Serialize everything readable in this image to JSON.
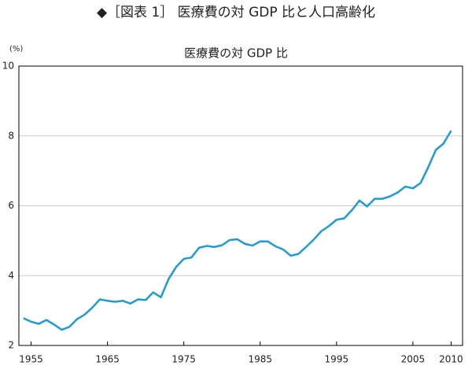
{
  "header": "◆［図表 1］ 医療費の対 GDP 比と人口高齢化",
  "chart_data": {
    "type": "line",
    "title": "医療費の対 GDP 比",
    "y_unit": "(%)",
    "x": [
      1954,
      1955,
      1956,
      1957,
      1958,
      1959,
      1960,
      1961,
      1962,
      1963,
      1964,
      1965,
      1966,
      1967,
      1968,
      1969,
      1970,
      1971,
      1972,
      1973,
      1974,
      1975,
      1976,
      1977,
      1978,
      1979,
      1980,
      1981,
      1982,
      1983,
      1984,
      1985,
      1986,
      1987,
      1988,
      1989,
      1990,
      1991,
      1992,
      1993,
      1994,
      1995,
      1996,
      1997,
      1998,
      1999,
      2000,
      2001,
      2002,
      2003,
      2004,
      2005,
      2006,
      2007,
      2008,
      2009,
      2010
    ],
    "series": [
      {
        "name": "医療費の対 GDP 比",
        "color": "#1e9bd7",
        "values": [
          2.78,
          2.68,
          2.62,
          2.73,
          2.6,
          2.45,
          2.53,
          2.75,
          2.88,
          3.08,
          3.32,
          3.28,
          3.25,
          3.28,
          3.2,
          3.32,
          3.3,
          3.52,
          3.38,
          3.9,
          4.25,
          4.48,
          4.52,
          4.8,
          4.85,
          4.82,
          4.87,
          5.02,
          5.04,
          4.91,
          4.86,
          4.98,
          4.98,
          4.84,
          4.75,
          4.57,
          4.62,
          4.82,
          5.03,
          5.27,
          5.42,
          5.6,
          5.64,
          5.87,
          6.15,
          5.98,
          6.2,
          6.2,
          6.27,
          6.38,
          6.55,
          6.5,
          6.65,
          7.1,
          7.6,
          7.78,
          8.15
        ]
      }
    ],
    "xlim": [
      1953.4,
      2011.5
    ],
    "xticks": [
      1955,
      1965,
      1975,
      1985,
      1995,
      2005,
      2010
    ],
    "ylim": [
      2,
      10
    ],
    "yticks": [
      2,
      4,
      6,
      8,
      10
    ],
    "grid": true
  }
}
